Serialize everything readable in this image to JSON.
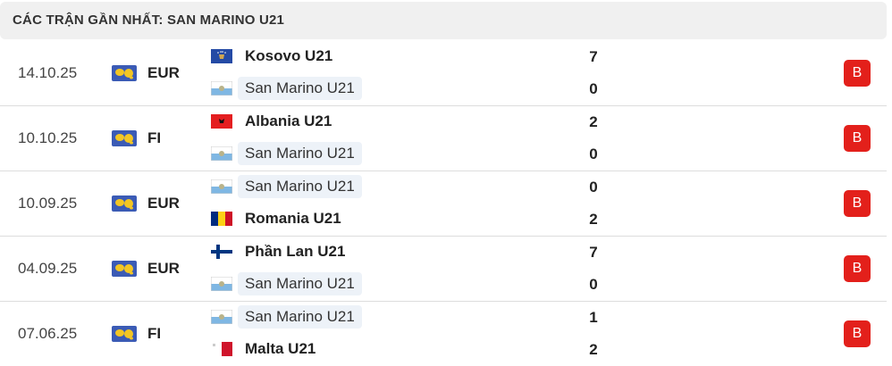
{
  "header": {
    "title": "CÁC TRẬN GẦN NHẤT: SAN MARINO U21"
  },
  "matches": [
    {
      "date": "14.10.25",
      "competition": "EUR",
      "home": {
        "team": "Kosovo U21",
        "score": "7"
      },
      "away": {
        "team": "San Marino U21",
        "score": "0"
      },
      "result": "B"
    },
    {
      "date": "10.10.25",
      "competition": "FI",
      "home": {
        "team": "Albania U21",
        "score": "2"
      },
      "away": {
        "team": "San Marino U21",
        "score": "0"
      },
      "result": "B"
    },
    {
      "date": "10.09.25",
      "competition": "EUR",
      "home": {
        "team": "San Marino U21",
        "score": "0"
      },
      "away": {
        "team": "Romania U21",
        "score": "2"
      },
      "result": "B"
    },
    {
      "date": "04.09.25",
      "competition": "EUR",
      "home": {
        "team": "Phần Lan U21",
        "score": "7"
      },
      "away": {
        "team": "San Marino U21",
        "score": "0"
      },
      "result": "B"
    },
    {
      "date": "07.06.25",
      "competition": "FI",
      "home": {
        "team": "San Marino U21",
        "score": "1"
      },
      "away": {
        "team": "Malta U21",
        "score": "2"
      },
      "result": "B"
    }
  ]
}
